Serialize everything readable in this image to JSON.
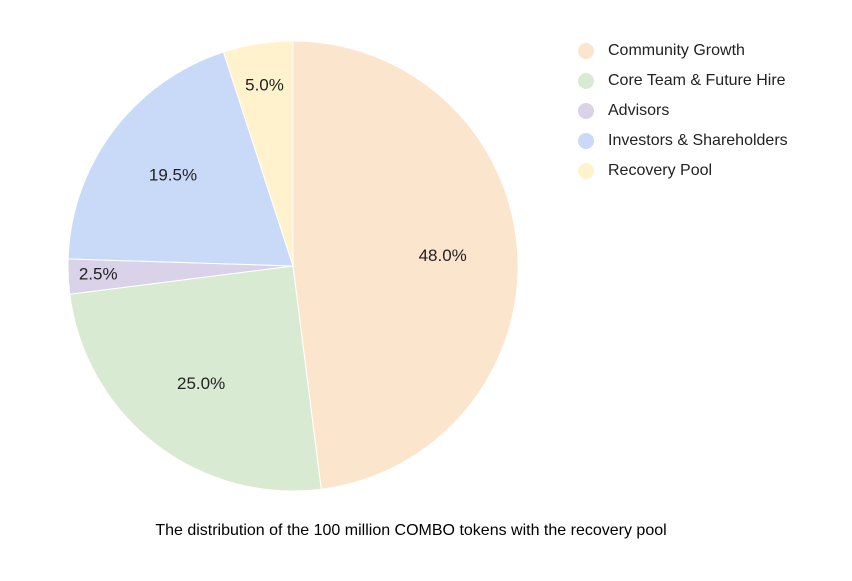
{
  "chart_data": {
    "type": "pie",
    "title": "",
    "caption": "The distribution of the 100 million COMBO tokens with the recovery pool",
    "legend_position": "top-right",
    "start_angle_deg": 0,
    "direction": "clockwise",
    "slices": [
      {
        "label": "Community Growth",
        "value": 48.0,
        "display": "48.0%",
        "color": "#FCE5CD"
      },
      {
        "label": "Core Team & Future Hire",
        "value": 25.0,
        "display": "25.0%",
        "color": "#D9EAD3"
      },
      {
        "label": "Advisors",
        "value": 2.5,
        "display": "2.5%",
        "color": "#D9D2E9"
      },
      {
        "label": "Investors & Shareholders",
        "value": 19.5,
        "display": "19.5%",
        "color": "#C9DAF8"
      },
      {
        "label": "Recovery Pool",
        "value": 5.0,
        "display": "5.0%",
        "color": "#FFF2CC"
      }
    ]
  }
}
